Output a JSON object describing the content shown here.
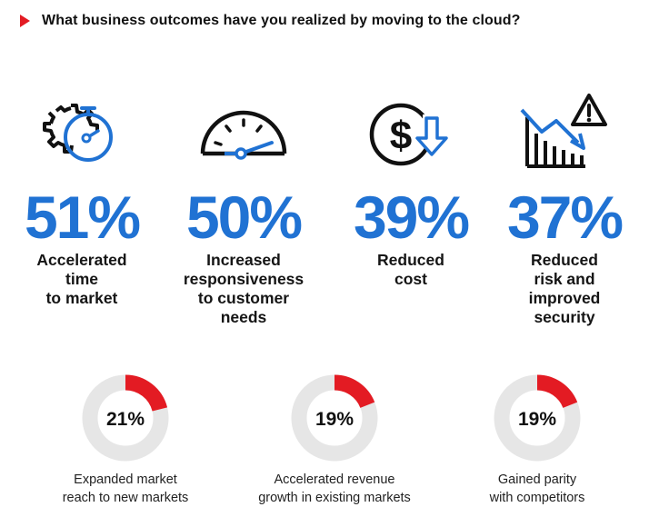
{
  "header": {
    "title": "What business outcomes have you realized by moving to the cloud?",
    "accent_color": "#e31b23"
  },
  "colors": {
    "stat_blue": "#2072d3",
    "ring_track": "#e6e6e6",
    "ring_fill": "#e31b23"
  },
  "stats": [
    {
      "icon": "gear-stopwatch-icon",
      "value": "51%",
      "label": "Accelerated\ntime\nto market"
    },
    {
      "icon": "speedometer-icon",
      "value": "50%",
      "label": "Increased\nresponsiveness\nto customer\nneeds"
    },
    {
      "icon": "dollar-down-arrow-icon",
      "value": "39%",
      "label": "Reduced\ncost"
    },
    {
      "icon": "declining-bars-warning-icon",
      "value": "37%",
      "label": "Reduced\nrisk and\nimproved\nsecurity"
    }
  ],
  "chart_data": [
    {
      "type": "bar",
      "categories": [
        "Accelerated time to market",
        "Increased responsiveness to customer needs",
        "Reduced cost",
        "Reduced risk and improved security"
      ],
      "values": [
        51,
        50,
        39,
        37
      ]
    },
    {
      "type": "pie",
      "categories": [
        "Expanded market reach to new markets",
        "Accelerated revenue growth in existing markets",
        "Gained parity with competitors"
      ],
      "values": [
        21,
        19,
        19
      ]
    }
  ],
  "rings": [
    {
      "value": 21,
      "display": "21%",
      "label": "Expanded market\nreach to new markets"
    },
    {
      "value": 19,
      "display": "19%",
      "label": "Accelerated revenue\ngrowth in existing markets"
    },
    {
      "value": 19,
      "display": "19%",
      "label": "Gained parity\nwith competitors"
    }
  ]
}
